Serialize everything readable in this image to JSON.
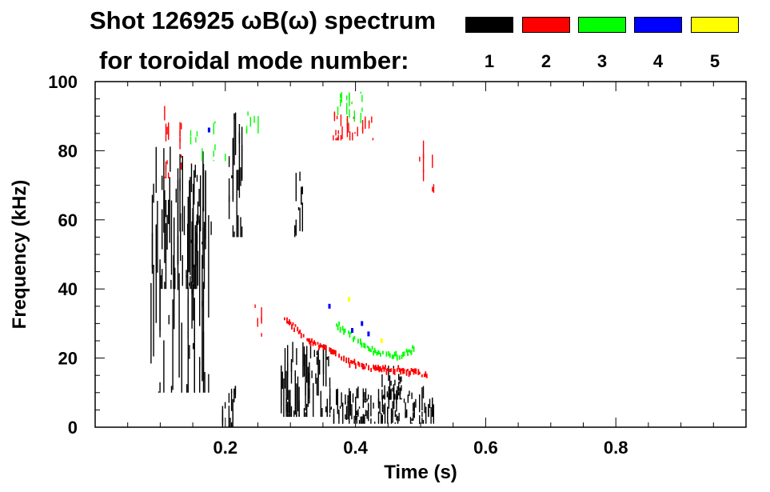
{
  "header": {
    "line1": "Shot 126925 ωB(ω) spectrum",
    "line2": "for toroidal mode number:"
  },
  "legend": [
    {
      "label": "1",
      "color": "#000000"
    },
    {
      "label": "2",
      "color": "#ff0000"
    },
    {
      "label": "3",
      "color": "#00ff00"
    },
    {
      "label": "4",
      "color": "#0000ff"
    },
    {
      "label": "5",
      "color": "#ffff00"
    }
  ],
  "chart_data": {
    "type": "heatmap",
    "title": "Shot 126925 ωB(ω) spectrum",
    "xlabel": "Time (s)",
    "ylabel": "Frequency (kHz)",
    "xlim": [
      0.0,
      1.0
    ],
    "ylim": [
      0,
      100
    ],
    "xticks": [
      0.2,
      0.4,
      0.6,
      0.8
    ],
    "xtick_labels": [
      "0.2",
      "0.4",
      "0.6",
      "0.8"
    ],
    "yticks": [
      0,
      20,
      40,
      60,
      80,
      100
    ],
    "ytick_labels": [
      "0",
      "20",
      "40",
      "60",
      "80",
      "100"
    ],
    "grid": false,
    "legend_position": "top-right",
    "series": [
      {
        "name": "1",
        "color": "#000000",
        "regions": [
          {
            "t": [
              0.085,
              0.185
            ],
            "f": [
              10,
              85
            ],
            "density": 0.55
          },
          {
            "t": [
              0.1,
              0.17
            ],
            "f": [
              40,
              80
            ],
            "density": 0.8
          },
          {
            "t": [
              0.205,
              0.225
            ],
            "f": [
              55,
              92
            ],
            "density": 0.85
          },
          {
            "t": [
              0.195,
              0.215
            ],
            "f": [
              0,
              12
            ],
            "density": 0.85
          },
          {
            "t": [
              0.285,
              0.36
            ],
            "f": [
              3,
              25
            ],
            "density": 0.85
          },
          {
            "t": [
              0.3,
              0.32
            ],
            "f": [
              55,
              75
            ],
            "density": 0.5
          },
          {
            "t": [
              0.36,
              0.52
            ],
            "f": [
              1,
              12
            ],
            "density": 0.85
          },
          {
            "t": [
              0.44,
              0.47
            ],
            "f": [
              8,
              18
            ],
            "density": 0.85
          }
        ]
      },
      {
        "name": "2",
        "color": "#ff0000",
        "regions": [
          {
            "t": [
              0.1,
              0.16
            ],
            "f": [
              72,
              95
            ],
            "density": 0.25
          },
          {
            "t": [
              0.245,
              0.255
            ],
            "f": [
              25,
              40
            ],
            "density": 0.6
          },
          {
            "t": [
              0.365,
              0.43
            ],
            "f": [
              83,
              92
            ],
            "density": 0.5
          },
          {
            "t": [
              0.48,
              0.52
            ],
            "f": [
              60,
              85
            ],
            "density": 0.2
          }
        ],
        "curves": [
          {
            "t": [
              0.29,
              0.31,
              0.33,
              0.35,
              0.37,
              0.39,
              0.41,
              0.43,
              0.45,
              0.47,
              0.49,
              0.51
            ],
            "f": [
              32,
              28,
              25,
              23,
              21,
              19,
              18,
              17,
              17,
              17,
              16,
              15
            ]
          }
        ]
      },
      {
        "name": "3",
        "color": "#00ff00",
        "regions": [
          {
            "t": [
              0.37,
              0.42
            ],
            "f": [
              88,
              98
            ],
            "density": 0.45
          },
          {
            "t": [
              0.23,
              0.25
            ],
            "f": [
              85,
              92
            ],
            "density": 0.5
          },
          {
            "t": [
              0.14,
              0.2
            ],
            "f": [
              77,
              90
            ],
            "density": 0.15
          }
        ],
        "curves": [
          {
            "t": [
              0.37,
              0.39,
              0.41,
              0.43,
              0.45,
              0.47,
              0.49
            ],
            "f": [
              30,
              27,
              24,
              22,
              21,
              21,
              23
            ]
          }
        ]
      },
      {
        "name": "4",
        "color": "#0000ff",
        "points": [
          [
            0.395,
            28
          ],
          [
            0.41,
            30
          ],
          [
            0.42,
            27
          ],
          [
            0.175,
            86
          ],
          [
            0.36,
            35
          ]
        ]
      },
      {
        "name": "5",
        "color": "#ffff00",
        "points": [
          [
            0.39,
            37
          ],
          [
            0.44,
            25
          ]
        ]
      }
    ]
  }
}
